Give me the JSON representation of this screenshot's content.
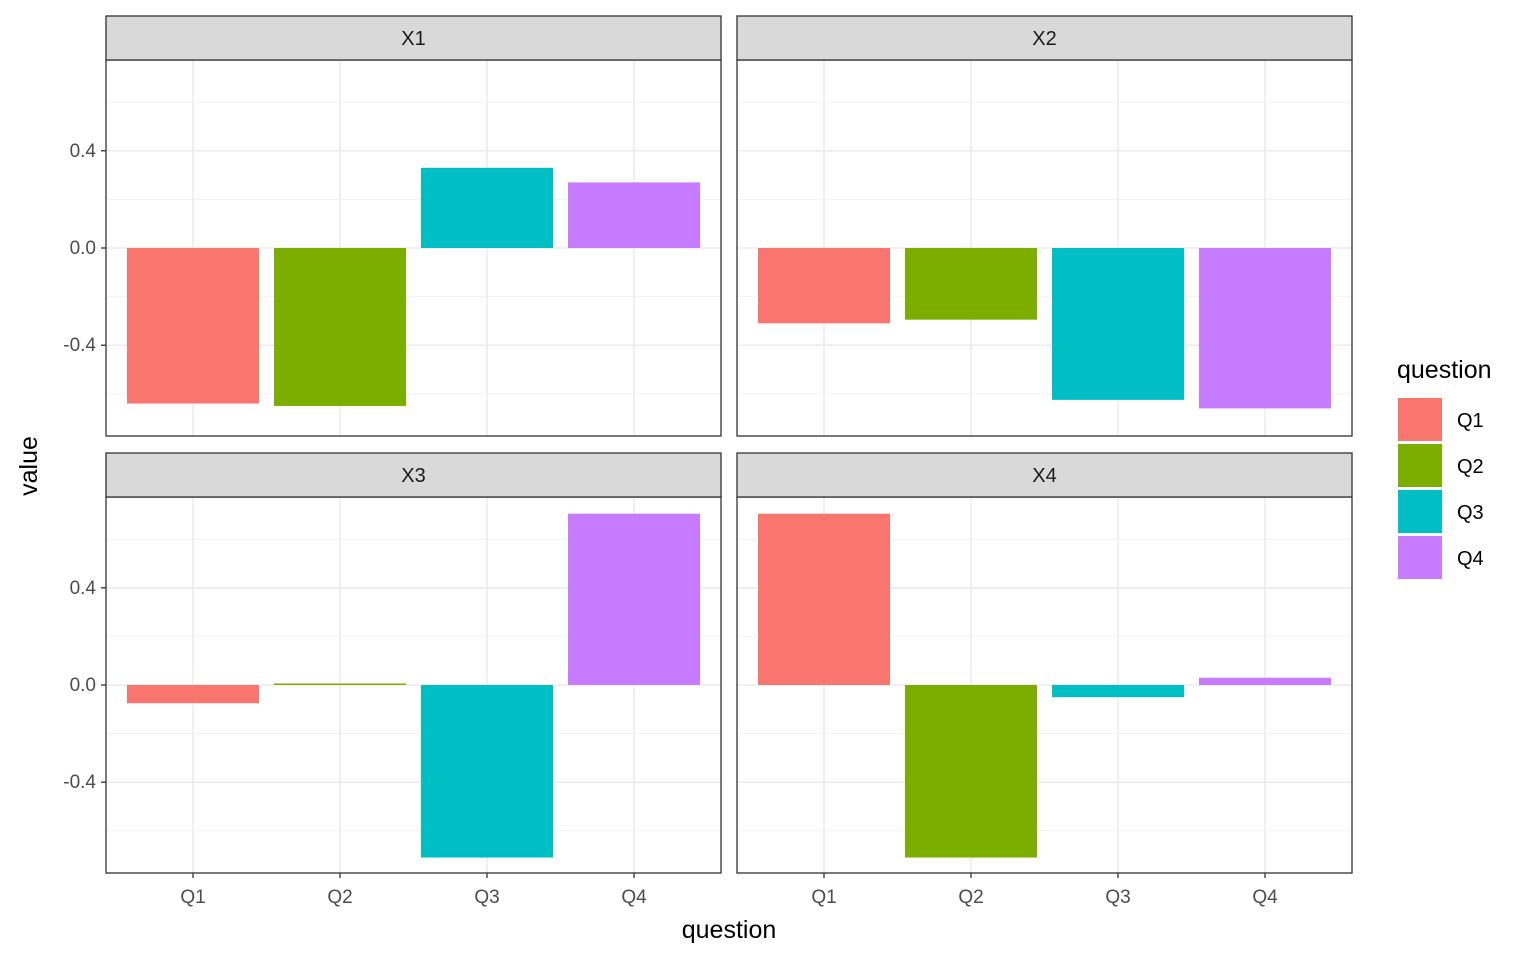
{
  "chart_data": {
    "type": "bar",
    "facet_by": "variable",
    "xlabel": "question",
    "ylabel": "value",
    "categories": [
      "Q1",
      "Q2",
      "Q3",
      "Q4"
    ],
    "yticks": [
      -0.4,
      0.0,
      0.4
    ],
    "ytick_labels": [
      "-0.4",
      "0.0",
      "0.4"
    ],
    "ylim": [
      -0.78,
      0.78
    ],
    "grid": true,
    "colors": {
      "Q1": "#F8766D",
      "Q2": "#7CAE00",
      "Q3": "#00BFC4",
      "Q4": "#C77CFF"
    },
    "legend": {
      "title": "question",
      "position": "right",
      "entries": [
        "Q1",
        "Q2",
        "Q3",
        "Q4"
      ]
    },
    "facets": [
      {
        "name": "X1",
        "values": [
          -0.64,
          -0.65,
          0.33,
          0.27
        ]
      },
      {
        "name": "X2",
        "values": [
          -0.31,
          -0.295,
          -0.625,
          -0.66
        ]
      },
      {
        "name": "X3",
        "values": [
          -0.075,
          0.005,
          -0.71,
          0.705
        ]
      },
      {
        "name": "X4",
        "values": [
          0.705,
          -0.71,
          -0.05,
          0.03
        ]
      }
    ]
  }
}
